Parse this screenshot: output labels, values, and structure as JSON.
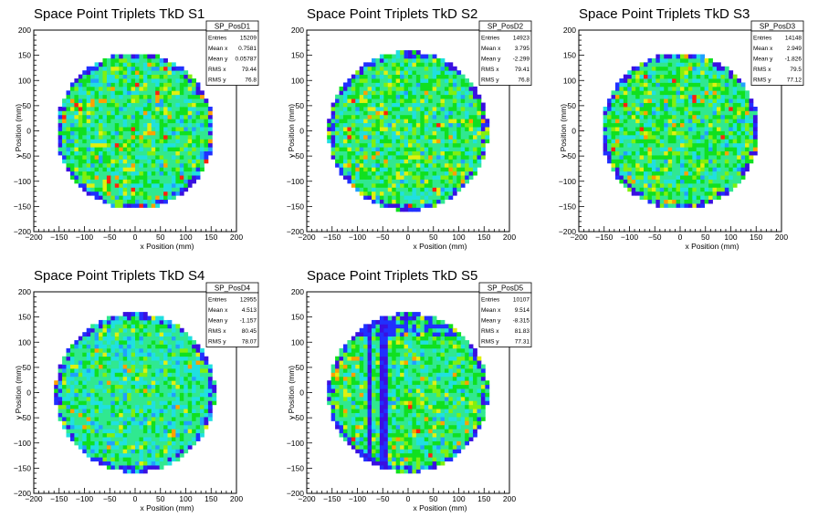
{
  "chart_data": [
    {
      "type": "heatmap",
      "title": "Space Point Triplets TkD S1",
      "xlabel": "x Position (mm)",
      "ylabel": "y Position (mm)",
      "xlim": [
        -200,
        200
      ],
      "ylim": [
        -200,
        200
      ],
      "x_ticks": [
        "−200",
        "−150",
        "−100",
        "−50",
        "0",
        "50",
        "100",
        "150",
        "200"
      ],
      "y_ticks": [
        "−200",
        "−150",
        "−100",
        "−50",
        "0",
        "50",
        "100",
        "150",
        "200"
      ],
      "stats": {
        "name": "SP_PosD1",
        "rows": [
          {
            "label": "Entries",
            "value": "15209"
          },
          {
            "label": "Mean x",
            "value": "0.7581"
          },
          {
            "label": "Mean y",
            "value": "0.05787"
          },
          {
            "label": "RMS x",
            "value": "79.44"
          },
          {
            "label": "RMS y",
            "value": "76.8"
          }
        ]
      },
      "distribution": {
        "shape": "disk",
        "center": [
          0,
          0
        ],
        "radius": 155,
        "bin_width": 8,
        "style": "uniform"
      }
    },
    {
      "type": "heatmap",
      "title": "Space Point Triplets TkD S2",
      "xlabel": "x Position (mm)",
      "ylabel": "y Position (mm)",
      "xlim": [
        -200,
        200
      ],
      "ylim": [
        -200,
        200
      ],
      "x_ticks": [
        "−200",
        "−150",
        "−100",
        "−50",
        "0",
        "50",
        "100",
        "150",
        "200"
      ],
      "y_ticks": [
        "−200",
        "−150",
        "−100",
        "−50",
        "0",
        "50",
        "100",
        "150",
        "200"
      ],
      "stats": {
        "name": "SP_PosD2",
        "rows": [
          {
            "label": "Entries",
            "value": "14923"
          },
          {
            "label": "Mean x",
            "value": "3.795"
          },
          {
            "label": "Mean y",
            "value": "-2.299"
          },
          {
            "label": "RMS x",
            "value": "79.41"
          },
          {
            "label": "RMS y",
            "value": "76.8"
          }
        ]
      },
      "distribution": {
        "shape": "disk",
        "center": [
          0,
          0
        ],
        "radius": 158,
        "bin_width": 8,
        "style": "uniform"
      }
    },
    {
      "type": "heatmap",
      "title": "Space Point Triplets TkD S3",
      "xlabel": "x Position (mm)",
      "ylabel": "y Position (mm)",
      "xlim": [
        -200,
        200
      ],
      "ylim": [
        -200,
        200
      ],
      "x_ticks": [
        "−200",
        "−150",
        "−100",
        "−50",
        "0",
        "50",
        "100",
        "150",
        "200"
      ],
      "y_ticks": [
        "−200",
        "−150",
        "−100",
        "−50",
        "0",
        "50",
        "100",
        "150",
        "200"
      ],
      "stats": {
        "name": "SP_PosD3",
        "rows": [
          {
            "label": "Entries",
            "value": "14148"
          },
          {
            "label": "Mean x",
            "value": "2.949"
          },
          {
            "label": "Mean y",
            "value": "-1.826"
          },
          {
            "label": "RMS x",
            "value": "79.5"
          },
          {
            "label": "RMS y",
            "value": "77.12"
          }
        ]
      },
      "distribution": {
        "shape": "disk",
        "center": [
          0,
          0
        ],
        "radius": 155,
        "bin_width": 8,
        "style": "uniform"
      }
    },
    {
      "type": "heatmap",
      "title": "Space Point Triplets TkD S4",
      "xlabel": "x Position (mm)",
      "ylabel": "y Position (mm)",
      "xlim": [
        -200,
        200
      ],
      "ylim": [
        -200,
        200
      ],
      "x_ticks": [
        "−200",
        "−150",
        "−100",
        "−50",
        "0",
        "50",
        "100",
        "150",
        "200"
      ],
      "y_ticks": [
        "−200",
        "−150",
        "−100",
        "−50",
        "0",
        "50",
        "100",
        "150",
        "200"
      ],
      "stats": {
        "name": "SP_PosD4",
        "rows": [
          {
            "label": "Entries",
            "value": "12955"
          },
          {
            "label": "Mean x",
            "value": "4.513"
          },
          {
            "label": "Mean y",
            "value": "-1.157"
          },
          {
            "label": "RMS x",
            "value": "80.45"
          },
          {
            "label": "RMS y",
            "value": "78.07"
          }
        ]
      },
      "distribution": {
        "shape": "disk",
        "center": [
          0,
          0
        ],
        "radius": 158,
        "bin_width": 8,
        "style": "cool"
      }
    },
    {
      "type": "heatmap",
      "title": "Space Point Triplets TkD S5",
      "xlabel": "x Position (mm)",
      "ylabel": "y Position (mm)",
      "xlim": [
        -200,
        200
      ],
      "ylim": [
        -200,
        200
      ],
      "x_ticks": [
        "−200",
        "−150",
        "−100",
        "−50",
        "0",
        "50",
        "100",
        "150",
        "200"
      ],
      "y_ticks": [
        "−200",
        "−150",
        "−100",
        "−50",
        "0",
        "50",
        "100",
        "150",
        "200"
      ],
      "stats": {
        "name": "SP_PosD5",
        "rows": [
          {
            "label": "Entries",
            "value": "10107"
          },
          {
            "label": "Mean x",
            "value": "9.514"
          },
          {
            "label": "Mean y",
            "value": "-8.315"
          },
          {
            "label": "RMS x",
            "value": "81.83"
          },
          {
            "label": "RMS y",
            "value": "77.31"
          }
        ]
      },
      "distribution": {
        "shape": "disk",
        "center": [
          0,
          0
        ],
        "radius": 158,
        "bin_width": 8,
        "style": "stripes",
        "low_x_bands": [
          [
            -80,
            -70
          ],
          [
            -56,
            -40
          ]
        ]
      }
    }
  ],
  "palette": [
    "#3a10e0",
    "#2030ff",
    "#20a0ff",
    "#20e0e0",
    "#30e890",
    "#10e020",
    "#80f010",
    "#e0f010",
    "#ffa000",
    "#ff2010"
  ]
}
